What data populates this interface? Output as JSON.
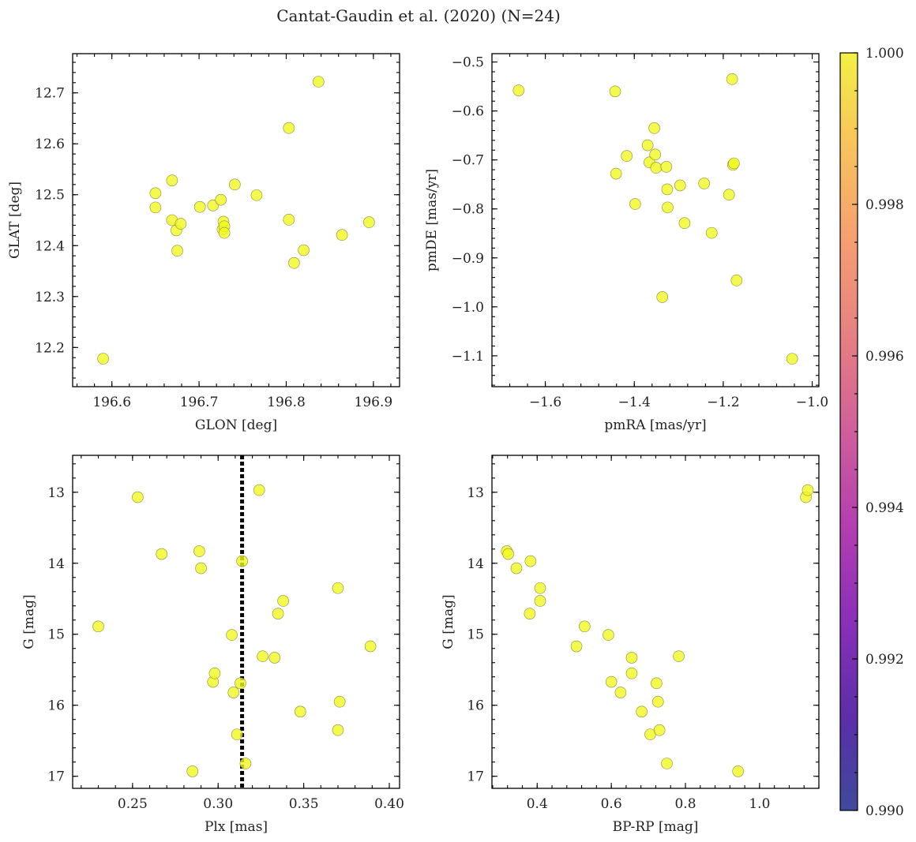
{
  "figure": {
    "title": "Cantat-Gaudin et al. (2020) (N=24)"
  },
  "chart_data": [
    {
      "id": "sky",
      "type": "scatter",
      "xlabel": "GLON [deg]",
      "ylabel": "GLAT [deg]",
      "xlim": [
        196.555,
        196.93
      ],
      "ylim": [
        12.123,
        12.777
      ],
      "xticks": [
        196.6,
        196.7,
        196.8,
        196.9
      ],
      "xtick_labels": [
        "196.6",
        "196.7",
        "196.8",
        "196.9"
      ],
      "yticks": [
        12.2,
        12.3,
        12.4,
        12.5,
        12.6,
        12.7
      ],
      "ytick_labels": [
        "12.2",
        "12.3",
        "12.4",
        "12.5",
        "12.6",
        "12.7"
      ],
      "x": [
        196.59,
        196.65,
        196.65,
        196.669,
        196.669,
        196.674,
        196.675,
        196.679,
        196.701,
        196.716,
        196.725,
        196.727,
        196.728,
        196.729,
        196.729,
        196.741,
        196.766,
        196.803,
        196.803,
        196.809,
        196.82,
        196.837,
        196.864,
        196.895
      ],
      "y": [
        12.178,
        12.503,
        12.475,
        12.528,
        12.45,
        12.43,
        12.39,
        12.443,
        12.476,
        12.479,
        12.49,
        12.432,
        12.447,
        12.438,
        12.425,
        12.52,
        12.499,
        12.631,
        12.451,
        12.366,
        12.391,
        12.722,
        12.421,
        12.446
      ]
    },
    {
      "id": "pm",
      "type": "scatter",
      "xlabel": "pmRA [mas/yr]",
      "ylabel": "pmDE [mas/yr]",
      "xlim": [
        -1.72,
        -0.985
      ],
      "ylim": [
        -1.163,
        -0.483
      ],
      "xticks": [
        -1.6,
        -1.4,
        -1.2,
        -1.0
      ],
      "xtick_labels": [
        "−1.6",
        "−1.4",
        "−1.2",
        "−1.0"
      ],
      "yticks": [
        -1.1,
        -1.0,
        -0.9,
        -0.8,
        -0.7,
        -0.6,
        -0.5
      ],
      "ytick_labels": [
        "−1.1",
        "−1.0",
        "−0.9",
        "−0.8",
        "−0.7",
        "−0.6",
        "−0.5"
      ],
      "x": [
        -1.66,
        -1.443,
        -1.441,
        -1.417,
        -1.398,
        -1.37,
        -1.366,
        -1.355,
        -1.353,
        -1.351,
        -1.328,
        -1.326,
        -1.325,
        -1.337,
        -1.297,
        -1.287,
        -1.243,
        -1.226,
        -1.187,
        -1.18,
        -1.178,
        -1.176,
        -1.17,
        -1.045
      ],
      "y": [
        -0.558,
        -0.56,
        -0.728,
        -0.692,
        -0.79,
        -0.67,
        -0.705,
        -0.635,
        -0.689,
        -0.716,
        -0.714,
        -0.76,
        -0.797,
        -0.98,
        -0.752,
        -0.829,
        -0.748,
        -0.849,
        -0.771,
        -0.535,
        -0.71,
        -0.707,
        -0.946,
        -1.106
      ]
    },
    {
      "id": "plx",
      "type": "scatter",
      "xlabel": "Plx [mas]",
      "ylabel": "G [mag]",
      "xlim": [
        0.215,
        0.406
      ],
      "ylim": [
        17.17,
        12.48
      ],
      "y_inverted": true,
      "xticks": [
        0.25,
        0.3,
        0.35,
        0.4
      ],
      "xtick_labels": [
        "0.25",
        "0.30",
        "0.35",
        "0.40"
      ],
      "yticks": [
        13,
        14,
        15,
        16,
        17
      ],
      "ytick_labels": [
        "13",
        "14",
        "15",
        "16",
        "17"
      ],
      "reference_line_x": 0.314,
      "x": [
        0.23,
        0.253,
        0.267,
        0.285,
        0.289,
        0.29,
        0.297,
        0.298,
        0.308,
        0.309,
        0.311,
        0.313,
        0.314,
        0.316,
        0.324,
        0.326,
        0.333,
        0.335,
        0.338,
        0.348,
        0.37,
        0.37,
        0.371,
        0.389
      ],
      "y": [
        14.89,
        13.07,
        13.87,
        16.93,
        13.83,
        14.07,
        15.67,
        15.55,
        15.01,
        15.82,
        16.41,
        15.69,
        13.97,
        16.82,
        12.97,
        15.31,
        15.33,
        14.71,
        14.53,
        16.09,
        14.35,
        16.35,
        15.95,
        15.17
      ]
    },
    {
      "id": "cmd",
      "type": "scatter",
      "xlabel": "BP-RP [mag]",
      "ylabel": "G [mag]",
      "xlim": [
        0.278,
        1.16
      ],
      "ylim": [
        17.17,
        12.48
      ],
      "y_inverted": true,
      "xticks": [
        0.4,
        0.6,
        0.8,
        1.0
      ],
      "xtick_labels": [
        "0.4",
        "0.6",
        "0.8",
        "1.0"
      ],
      "yticks": [
        13,
        14,
        15,
        16,
        17
      ],
      "ytick_labels": [
        "13",
        "14",
        "15",
        "16",
        "17"
      ],
      "x": [
        0.318,
        0.322,
        0.344,
        0.382,
        0.38,
        0.408,
        0.408,
        0.506,
        0.528,
        0.592,
        0.6,
        0.625,
        0.655,
        0.655,
        0.682,
        0.705,
        0.722,
        0.726,
        0.73,
        0.75,
        0.782,
        0.942,
        1.125,
        1.13
      ],
      "y": [
        13.83,
        13.87,
        14.07,
        13.97,
        14.71,
        14.35,
        14.53,
        15.17,
        14.89,
        15.01,
        15.67,
        15.82,
        15.33,
        15.55,
        16.09,
        16.41,
        15.69,
        15.95,
        16.35,
        16.82,
        15.31,
        16.93,
        13.07,
        12.97
      ]
    }
  ],
  "colorbar": {
    "colormap": "plasma",
    "vmin": 0.99,
    "vmax": 1.0,
    "ticks": [
      0.99,
      0.992,
      0.994,
      0.996,
      0.998,
      1.0
    ],
    "tick_labels": [
      "0.990",
      "0.992",
      "0.994",
      "0.996",
      "0.998",
      "1.000"
    ]
  },
  "colors": {
    "point_fill": "#f0f921",
    "point_edge": "#8a8a40",
    "reference_line": "#000000"
  }
}
